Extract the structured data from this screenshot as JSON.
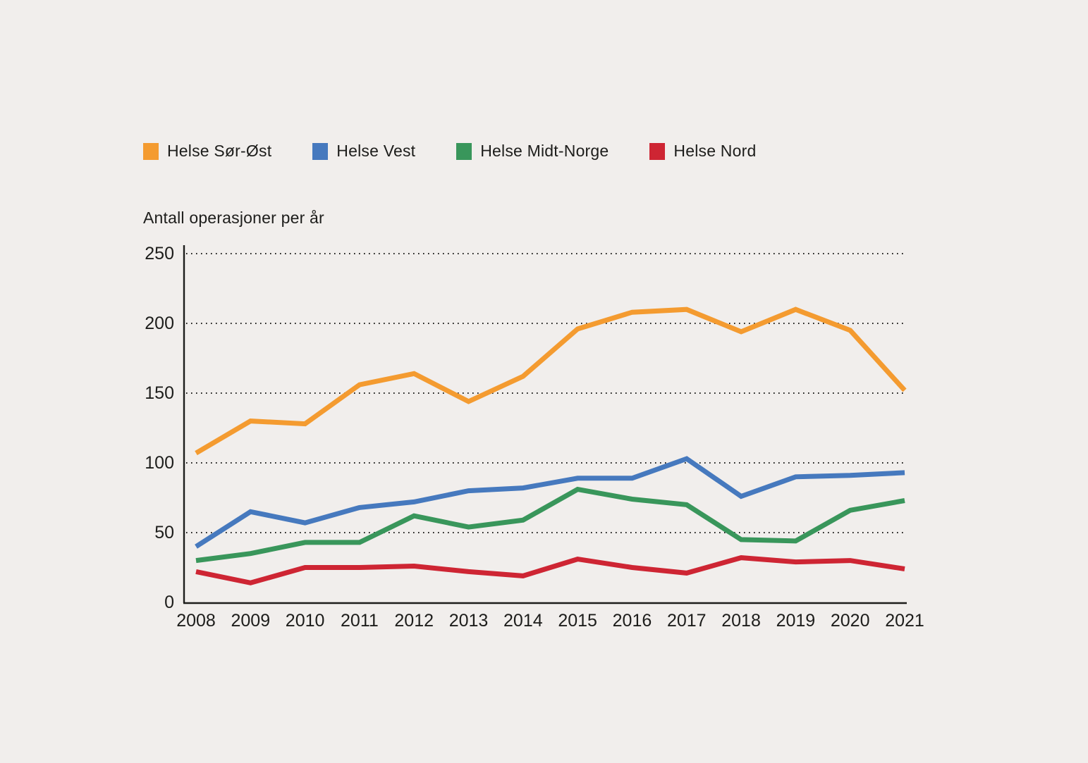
{
  "chart_data": {
    "type": "line",
    "title": "Antall operasjoner per år",
    "x": [
      "2008",
      "2009",
      "2010",
      "2011",
      "2012",
      "2013",
      "2014",
      "2015",
      "2016",
      "2017",
      "2018",
      "2019",
      "2020",
      "2021"
    ],
    "xlabel": "",
    "ylabel": "Antall operasjoner per år",
    "ylim": [
      0,
      250
    ],
    "y_ticks": [
      0,
      50,
      100,
      150,
      200,
      250
    ],
    "grid": "horizontal-dotted",
    "legend_position": "top-left",
    "series": [
      {
        "name": "Helse Sør-Øst",
        "color": "#F49B30",
        "values": [
          107,
          130,
          128,
          156,
          164,
          144,
          162,
          196,
          208,
          210,
          194,
          210,
          195,
          152
        ]
      },
      {
        "name": "Helse Vest",
        "color": "#4679BE",
        "values": [
          40,
          65,
          57,
          68,
          72,
          80,
          82,
          89,
          89,
          103,
          76,
          90,
          91,
          93
        ]
      },
      {
        "name": "Helse Midt-Norge",
        "color": "#39965B",
        "values": [
          30,
          35,
          43,
          43,
          62,
          54,
          59,
          81,
          74,
          70,
          45,
          44,
          66,
          73
        ]
      },
      {
        "name": "Helse Nord",
        "color": "#CE2533",
        "values": [
          22,
          14,
          25,
          25,
          26,
          22,
          19,
          31,
          25,
          21,
          32,
          29,
          30,
          24
        ]
      }
    ],
    "colors": {
      "background": "#F1EEEC",
      "text": "#1D1D1B",
      "axis": "#1D1D1B",
      "gridline": "#1D1D1B"
    }
  }
}
